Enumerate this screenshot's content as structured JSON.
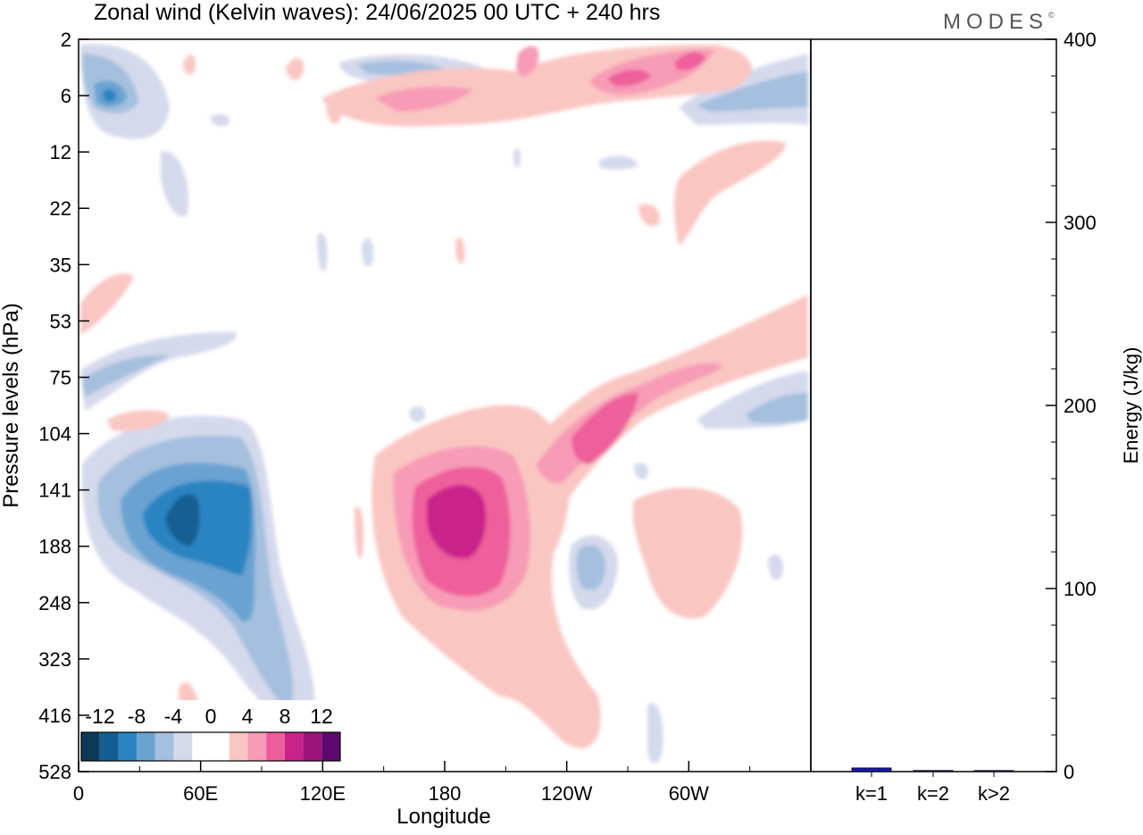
{
  "chart_data": [
    {
      "type": "heatmap",
      "title": "Zonal wind (Kelvin waves):  24/06/2025  00 UTC  + 240 hrs",
      "xlabel": "Longitude",
      "ylabel": "Pressure levels (hPa)",
      "x_ticks": [
        "0",
        "60E",
        "120E",
        "180",
        "120W",
        "60W"
      ],
      "x_tick_degrees": [
        0,
        60,
        120,
        180,
        240,
        300
      ],
      "xlim": [
        0,
        360
      ],
      "y_ticks": [
        "2",
        "6",
        "12",
        "22",
        "35",
        "53",
        "75",
        "104",
        "141",
        "188",
        "248",
        "323",
        "416",
        "528"
      ],
      "y_scale": "categorical pressure levels (top to bottom)",
      "colorbar": {
        "labels": [
          "-12",
          "-8",
          "-4",
          "0",
          "4",
          "8",
          "12"
        ],
        "colors": [
          "#0c3a5a",
          "#135e93",
          "#2a84c2",
          "#6aa3d2",
          "#a4c0de",
          "#d5d9ec",
          "#ffffff",
          "#ffffff",
          "#fac6c2",
          "#f79bb6",
          "#ee5e9b",
          "#c9228a",
          "#9c137a",
          "#5c0a6d"
        ]
      },
      "features": [
        {
          "sign": "positive",
          "peak": "10 to 12",
          "lon": 185,
          "level": "141-188"
        },
        {
          "sign": "negative",
          "peak": "-10 to -12",
          "lon": 55,
          "level": "141-188"
        },
        {
          "sign": "positive",
          "peak": "8",
          "lon": 318,
          "level": "6"
        },
        {
          "sign": "negative",
          "peak": "-8",
          "lon": 18,
          "level": "6"
        }
      ]
    },
    {
      "type": "bar",
      "ylabel": "Energy (J/kg)",
      "categories": [
        "k=1",
        "k=2",
        "k>2"
      ],
      "values": [
        2,
        0.6,
        0.4
      ],
      "ylim": [
        0,
        400
      ],
      "y_ticks": [
        "0",
        "100",
        "200",
        "300",
        "400"
      ],
      "bar_color": "#1a1ab4"
    }
  ],
  "logo": "MODES",
  "logo_mark": "©"
}
